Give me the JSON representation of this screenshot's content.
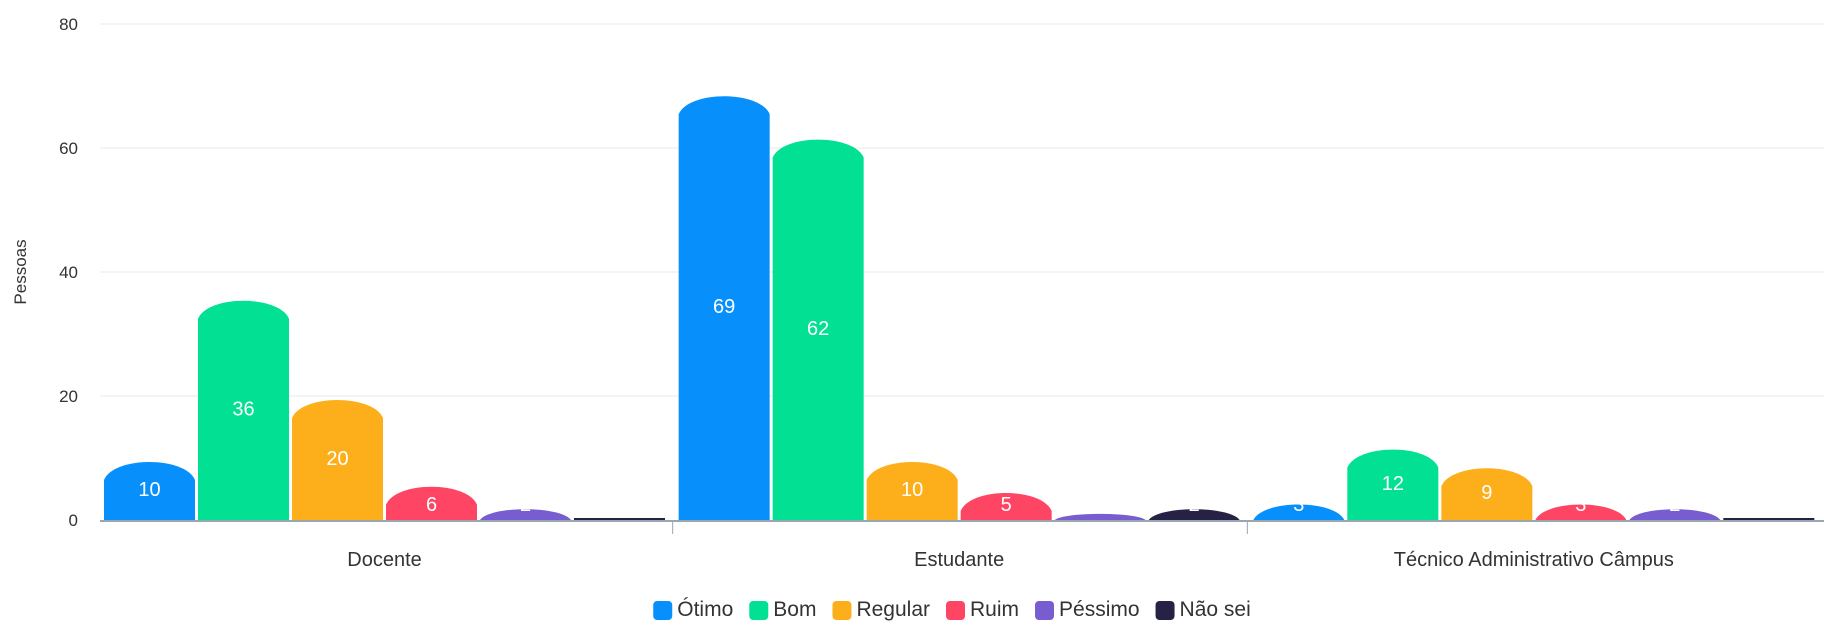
{
  "chart_data": {
    "type": "bar",
    "categories": [
      "Docente",
      "Estudante",
      "Técnico Administrativo Câmpus"
    ],
    "series": [
      {
        "name": "Ótimo",
        "color": "#0790fb",
        "values": [
          10,
          69,
          3
        ]
      },
      {
        "name": "Bom",
        "color": "#02e094",
        "values": [
          36,
          62,
          12
        ]
      },
      {
        "name": "Regular",
        "color": "#fdaf1b",
        "values": [
          20,
          10,
          9
        ]
      },
      {
        "name": "Ruim",
        "color": "#fe4563",
        "values": [
          6,
          5,
          3
        ]
      },
      {
        "name": "Péssimo",
        "color": "#775dd0",
        "values": [
          2,
          1,
          2
        ]
      },
      {
        "name": "Não sei",
        "color": "#262245",
        "values": [
          0,
          2,
          0
        ]
      }
    ],
    "data_labels": [
      [
        "10",
        "69",
        "3"
      ],
      [
        "36",
        "62",
        "12"
      ],
      [
        "20",
        "10",
        "9"
      ],
      [
        "6",
        "5",
        "3"
      ],
      [
        "2",
        "",
        "2"
      ],
      [
        "",
        "2",
        ""
      ]
    ],
    "title": "",
    "xlabel": "",
    "ylabel": "Pessoas",
    "ylim": [
      0,
      80
    ],
    "yticks": [
      "0",
      "20",
      "40",
      "60",
      "80"
    ],
    "grid": true,
    "legend": "bottom-center"
  }
}
